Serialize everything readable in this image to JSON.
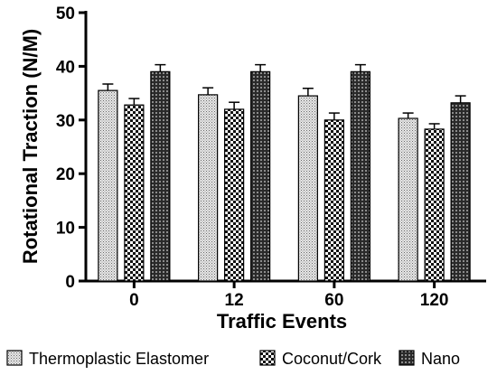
{
  "chart_data": {
    "type": "bar",
    "xlabel": "Traffic Events",
    "ylabel": "Rotational Traction (N/M)",
    "ylim": [
      0,
      50
    ],
    "yticks": [
      0,
      10,
      20,
      30,
      40,
      50
    ],
    "categories": [
      "0",
      "12",
      "60",
      "120"
    ],
    "grid": false,
    "legend_position": "bottom",
    "series": [
      {
        "name": "Thermoplastic Elastomer",
        "values": [
          35.5,
          34.7,
          34.5,
          30.3
        ],
        "errors": [
          1.2,
          1.3,
          1.4,
          1.0
        ],
        "pattern": "fine-dots"
      },
      {
        "name": "Coconut/Cork",
        "values": [
          32.8,
          32.0,
          30.0,
          28.3
        ],
        "errors": [
          1.2,
          1.3,
          1.3,
          1.0
        ],
        "pattern": "checker"
      },
      {
        "name": "Nano",
        "values": [
          39.0,
          39.0,
          39.0,
          33.2
        ],
        "errors": [
          1.3,
          1.3,
          1.3,
          1.3
        ],
        "pattern": "dark-grid"
      }
    ]
  }
}
